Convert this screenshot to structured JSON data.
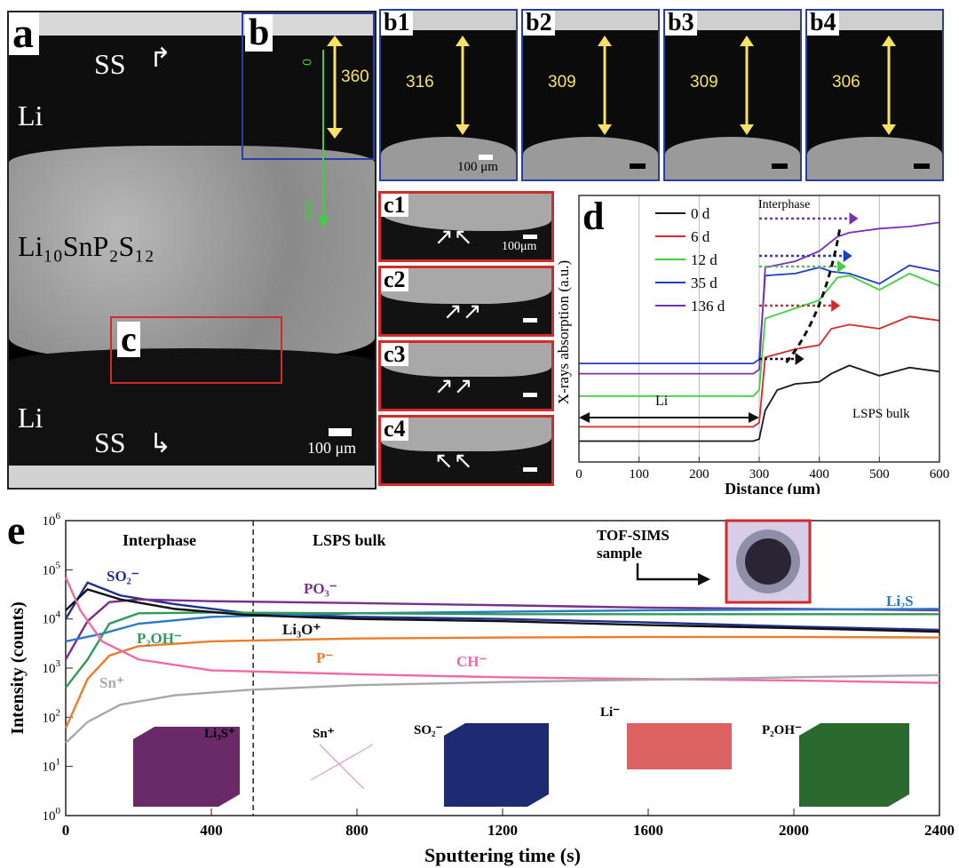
{
  "panel_a": {
    "letter": "a",
    "labels": {
      "ss_top": "SS",
      "li_top": "Li",
      "lsps": "Li₁₀SnP₂S₁₂",
      "li_bottom": "Li",
      "ss_bottom": "SS"
    },
    "scale_bar": "100 μm",
    "green_axis": {
      "start": "0",
      "end": "600"
    }
  },
  "panel_b": {
    "letter": "b",
    "thickness": "360"
  },
  "panels_b_series": [
    {
      "letter": "b1",
      "thickness": "316",
      "scale_bar": "100 μm"
    },
    {
      "letter": "b2",
      "thickness": "309",
      "scale_bar": ""
    },
    {
      "letter": "b3",
      "thickness": "309",
      "scale_bar": ""
    },
    {
      "letter": "b4",
      "thickness": "306",
      "scale_bar": ""
    }
  ],
  "panel_c": {
    "letter": "c"
  },
  "panels_c_series": [
    {
      "letter": "c1",
      "scale_bar": "100μm"
    },
    {
      "letter": "c2",
      "scale_bar": ""
    },
    {
      "letter": "c3",
      "scale_bar": ""
    },
    {
      "letter": "c4",
      "scale_bar": ""
    }
  ],
  "chart_data": [
    {
      "type": "line",
      "panel": "d",
      "xlabel": "Distance (μm)",
      "ylabel": "X-rays absorption (a.u.)",
      "xlim": [
        0,
        600
      ],
      "xticks": [
        0,
        100,
        200,
        300,
        400,
        500,
        600
      ],
      "annotations": {
        "interphase": "Interphase",
        "li": "Li",
        "bulk": "LSPS bulk"
      },
      "legend_position": "top-left",
      "series": [
        {
          "name": "0 d",
          "color": "#1a1a1a",
          "x": [
            0,
            290,
            300,
            310,
            330,
            360,
            400,
            420,
            450,
            500,
            550,
            600
          ],
          "y": [
            0.05,
            0.05,
            0.06,
            0.2,
            0.3,
            0.33,
            0.34,
            0.38,
            0.42,
            0.37,
            0.41,
            0.39
          ]
        },
        {
          "name": "6 d",
          "color": "#d42a2a",
          "x": [
            0,
            290,
            300,
            310,
            360,
            400,
            420,
            450,
            500,
            550,
            600
          ],
          "y": [
            0.12,
            0.12,
            0.14,
            0.46,
            0.5,
            0.52,
            0.6,
            0.62,
            0.6,
            0.66,
            0.64
          ]
        },
        {
          "name": "12 d",
          "color": "#3fcf3f",
          "x": [
            0,
            290,
            300,
            310,
            360,
            400,
            430,
            450,
            500,
            550,
            600
          ],
          "y": [
            0.27,
            0.27,
            0.3,
            0.65,
            0.7,
            0.74,
            0.85,
            0.86,
            0.79,
            0.87,
            0.81
          ]
        },
        {
          "name": "35 d",
          "color": "#1f3ec4",
          "x": [
            0,
            290,
            300,
            310,
            360,
            400,
            420,
            450,
            500,
            550,
            600
          ],
          "y": [
            0.43,
            0.43,
            0.45,
            0.86,
            0.87,
            0.9,
            0.88,
            0.87,
            0.82,
            0.91,
            0.88
          ]
        },
        {
          "name": "136 d",
          "color": "#7a2fb8",
          "x": [
            0,
            290,
            300,
            310,
            360,
            400,
            430,
            450,
            500,
            550,
            600
          ],
          "y": [
            0.38,
            0.38,
            0.4,
            0.9,
            0.93,
            0.98,
            1.05,
            1.07,
            1.09,
            1.1,
            1.12
          ]
        }
      ]
    },
    {
      "type": "line",
      "panel": "e",
      "xlabel": "Sputtering time (s)",
      "ylabel": "Intensity (counts)",
      "xlim": [
        0,
        2400
      ],
      "xticks": [
        0,
        400,
        800,
        1200,
        1600,
        2000,
        2400
      ],
      "ylog": true,
      "ylim": [
        1,
        1000000
      ],
      "ytick_exponents": [
        0,
        1,
        2,
        3,
        4,
        5,
        6
      ],
      "ytick_base": "10",
      "region_labels": {
        "interphase": "Interphase",
        "bulk": "LSPS bulk"
      },
      "divider_x": 515,
      "series": [
        {
          "name": "SO₂⁻",
          "color": "#22308c",
          "x": [
            0,
            60,
            150,
            300,
            500,
            800,
            1200,
            1600,
            2000,
            2400
          ],
          "y": [
            10000,
            55000,
            30000,
            20000,
            13000,
            11000,
            10000,
            8500,
            7000,
            6000
          ]
        },
        {
          "name": "PO₃⁻",
          "color": "#7a2f8c",
          "x": [
            0,
            60,
            120,
            200,
            400,
            800,
            1200,
            1600,
            2000,
            2400
          ],
          "y": [
            1500,
            9000,
            22000,
            25000,
            23000,
            21000,
            19000,
            17000,
            16000,
            15000
          ]
        },
        {
          "name": "Li₂S",
          "color": "#2a7ac8",
          "x": [
            0,
            100,
            200,
            400,
            800,
            1200,
            1600,
            2000,
            2400
          ],
          "y": [
            3500,
            5000,
            8000,
            11000,
            13000,
            14000,
            15000,
            15500,
            16000
          ]
        },
        {
          "name": "P₂OH⁻",
          "color": "#2f9a5a",
          "x": [
            0,
            60,
            120,
            200,
            400,
            800,
            1200,
            1600,
            2000,
            2400
          ],
          "y": [
            400,
            1500,
            8000,
            13000,
            13500,
            13000,
            12500,
            12500,
            12500,
            12500
          ]
        },
        {
          "name": "Li₃O⁺",
          "color": "#111111",
          "x": [
            0,
            60,
            150,
            300,
            500,
            800,
            1200,
            1600,
            2000,
            2400
          ],
          "y": [
            15000,
            40000,
            25000,
            16000,
            12000,
            10000,
            9000,
            7500,
            6500,
            5500
          ]
        },
        {
          "name": "P⁻",
          "color": "#ef7a2a",
          "x": [
            0,
            60,
            120,
            200,
            400,
            800,
            1200,
            1600,
            2000,
            2400
          ],
          "y": [
            60,
            600,
            1800,
            2800,
            3500,
            4000,
            4200,
            4300,
            4300,
            4200
          ]
        },
        {
          "name": "CH⁻",
          "color": "#ef6aa8",
          "x": [
            0,
            40,
            100,
            200,
            400,
            800,
            1200,
            1600,
            2000,
            2400
          ],
          "y": [
            70000,
            15000,
            3500,
            1500,
            900,
            750,
            650,
            600,
            560,
            500
          ]
        },
        {
          "name": "Sn⁺",
          "color": "#a8a8a8",
          "x": [
            0,
            60,
            150,
            300,
            500,
            800,
            1200,
            1600,
            2000,
            2400
          ],
          "y": [
            30,
            80,
            180,
            280,
            360,
            450,
            520,
            580,
            650,
            720
          ]
        }
      ],
      "inset_labels": {
        "sample": "TOF-SIMS\nsample",
        "maps": [
          "Li₃S⁺",
          "Sn⁺",
          "SO₂⁻",
          "Li⁻",
          "P₂OH⁻"
        ]
      }
    }
  ],
  "colors": {
    "blue_frame": "#2b3ea8",
    "red_frame": "#d42a2a",
    "gold": "#f6e264",
    "green": "#3fcf3f"
  }
}
